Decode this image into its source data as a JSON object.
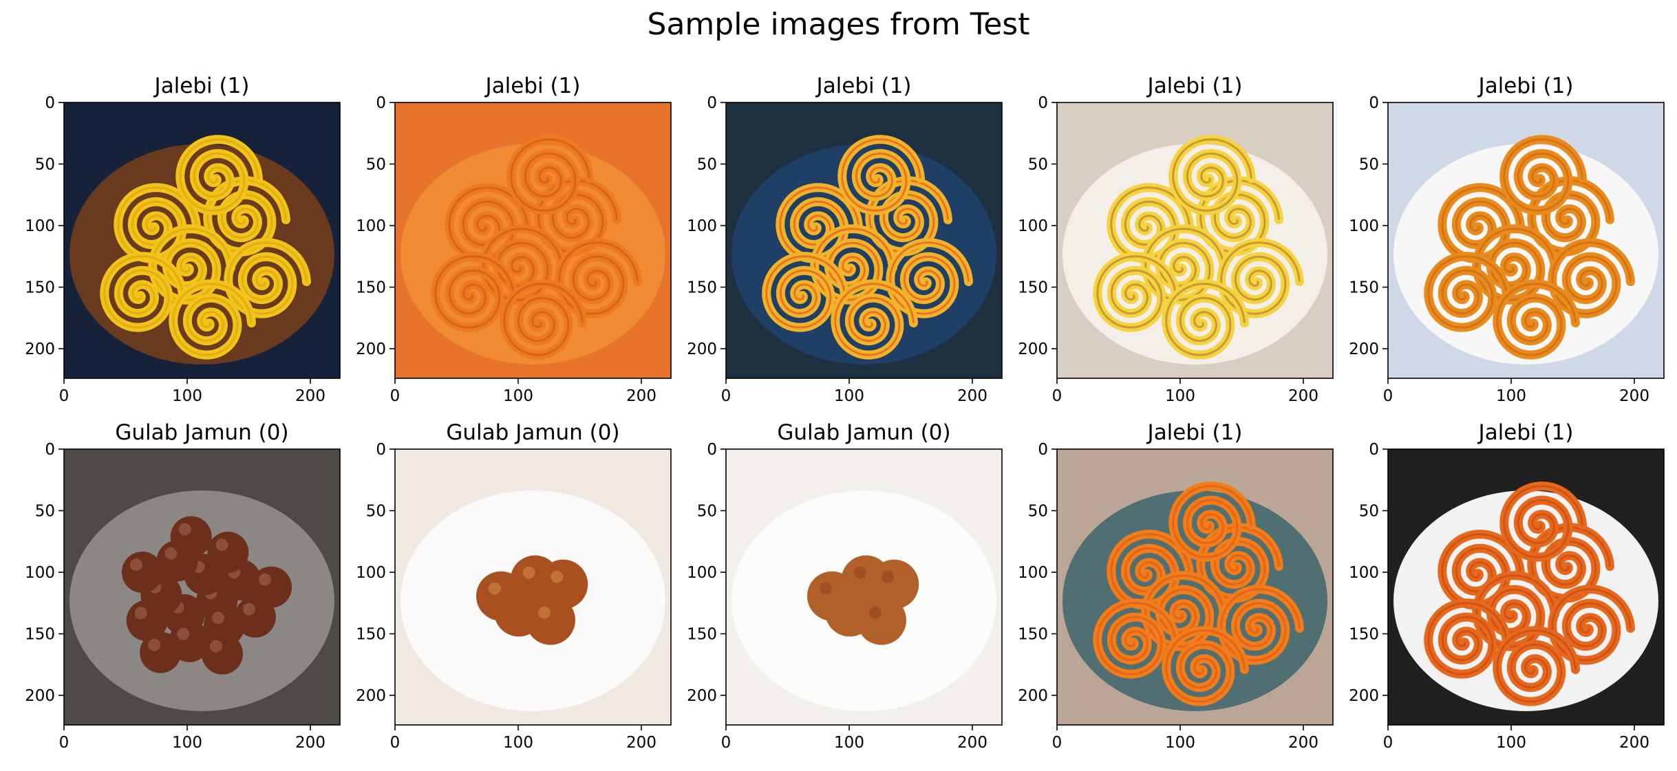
{
  "figure": {
    "suptitle": "Sample images from Test"
  },
  "axes": {
    "x_ticks": [
      "0",
      "100",
      "200"
    ],
    "y_ticks": [
      "0",
      "50",
      "100",
      "150",
      "200"
    ]
  },
  "panels": [
    {
      "title": "Jalebi (1)",
      "image": "jalebi-spirals-in-dark-bowl",
      "palette": {
        "bg": "#16213a",
        "plate": "#6a3a1e",
        "food": "#f2c318",
        "accent": "#d8a010"
      }
    },
    {
      "title": "Jalebi (1)",
      "image": "jalebi-held-in-hand",
      "palette": {
        "bg": "#e7742a",
        "plate": "#f08a33",
        "food": "#ee7a1e",
        "accent": "#c9541a"
      }
    },
    {
      "title": "Jalebi (1)",
      "image": "jalebi-on-blue-platter",
      "palette": {
        "bg": "#1d3040",
        "plate": "#203f66",
        "food": "#f0b42a",
        "accent": "#e6461e"
      }
    },
    {
      "title": "Jalebi (1)",
      "image": "jalebi-on-white-plate",
      "palette": {
        "bg": "#d8cfc3",
        "plate": "#f3efe8",
        "food": "#f5d33e",
        "accent": "#a9742e"
      }
    },
    {
      "title": "Jalebi (1)",
      "image": "jalebi-in-white-bowl",
      "palette": {
        "bg": "#cfd8e6",
        "plate": "#f7f7f7",
        "food": "#e98b1c",
        "accent": "#c8620f"
      }
    },
    {
      "title": "Gulab Jamun (0)",
      "image": "gulab-jamun-in-steel-pot",
      "palette": {
        "bg": "#4e4a46",
        "plate": "#8a8784",
        "food": "#6e2e1c",
        "accent": "#a56b58"
      }
    },
    {
      "title": "Gulab Jamun (0)",
      "image": "gulab-jamun-on-white-plate",
      "palette": {
        "bg": "#efe9e2",
        "plate": "#fbfaf8",
        "food": "#a8501f",
        "accent": "#d3904a"
      }
    },
    {
      "title": "Gulab Jamun (0)",
      "image": "gulab-jamun-in-white-bowl",
      "palette": {
        "bg": "#f3efea",
        "plate": "#fbfbf9",
        "food": "#b2602a",
        "accent": "#8e4320"
      }
    },
    {
      "title": "Jalebi (1)",
      "image": "jalebi-on-teal-plate",
      "palette": {
        "bg": "#bba597",
        "plate": "#4f6f73",
        "food": "#f07c1a",
        "accent": "#d9561a"
      }
    },
    {
      "title": "Jalebi (1)",
      "image": "jalebi-heap-on-white-plate",
      "palette": {
        "bg": "#202020",
        "plate": "#f2f2f2",
        "food": "#e6681c",
        "accent": "#c14612"
      }
    }
  ]
}
